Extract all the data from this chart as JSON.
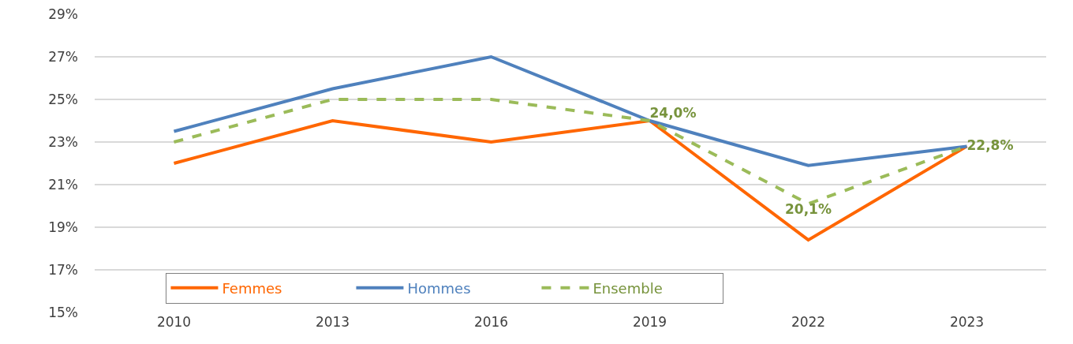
{
  "chart_data": {
    "type": "line",
    "categories": [
      "2010",
      "2013",
      "2016",
      "2019",
      "2022",
      "2023"
    ],
    "series": [
      {
        "name": "Femmes",
        "color": "#ff6600",
        "values": [
          22.0,
          24.0,
          23.0,
          24.0,
          18.4,
          22.8
        ]
      },
      {
        "name": "Hommes",
        "color": "#4f81bd",
        "values": [
          23.5,
          25.5,
          27.0,
          24.0,
          21.9,
          22.8
        ]
      },
      {
        "name": "Ensemble",
        "color": "#9bbb59",
        "line_style": "dashed",
        "values": [
          23.0,
          25.0,
          25.0,
          24.0,
          20.1,
          22.8
        ],
        "value_labels": [
          null,
          null,
          null,
          "24,0%",
          "20,1%",
          "22,8%"
        ]
      }
    ],
    "ylim": [
      15,
      29
    ],
    "yticks": [
      {
        "value": 15,
        "label": "15%"
      },
      {
        "value": 17,
        "label": "17%"
      },
      {
        "value": 19,
        "label": "19%"
      },
      {
        "value": 21,
        "label": "21%"
      },
      {
        "value": 23,
        "label": "23%"
      },
      {
        "value": 25,
        "label": "25%"
      },
      {
        "value": 27,
        "label": "27%"
      },
      {
        "value": 29,
        "label": "29%"
      }
    ],
    "grid": "y",
    "legend": "bottom left",
    "marker": "none",
    "line_style": "solid"
  }
}
